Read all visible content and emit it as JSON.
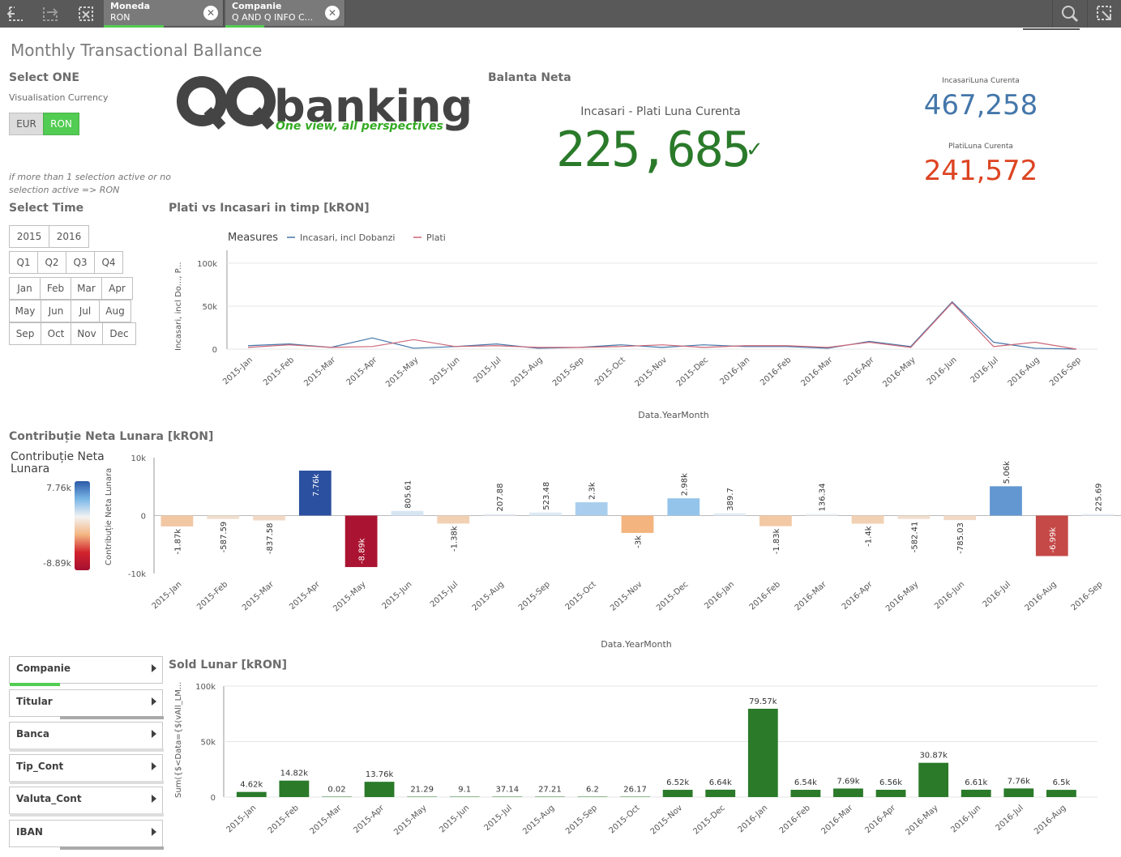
{
  "toolbar": {
    "icons": [
      "step-back-icon",
      "step-forward-icon",
      "clear-selections-icon",
      "search-icon",
      "smart-search-icon"
    ],
    "selections": [
      {
        "title": "Moneda",
        "value": "RON"
      },
      {
        "title": "Companie",
        "value": "Q AND Q INFO C..."
      }
    ]
  },
  "sheet_title": "Monthly Transactional Ballance",
  "currency": {
    "heading": "Select ONE",
    "subtitle": "Visualisation Currency",
    "options": [
      "EUR",
      "RON"
    ],
    "selected": "RON",
    "note": "if more than 1 selection active or no selection active => RON"
  },
  "logo": {
    "text": "QQbanking",
    "tagline": "One view, all perspectives"
  },
  "kpi": {
    "heading": "Balanta Neta",
    "main_label": "Incasari - Plati Luna Curenta",
    "main_value": "225,685",
    "main_color": "#2a7a2a",
    "incasari_label": "IncasariLuna Curenta",
    "incasari_value": "467,258",
    "incasari_color": "#4477aa",
    "plati_label": "PlatiLuna Curenta",
    "plati_value": "241,572",
    "plati_color": "#dd4422"
  },
  "time": {
    "heading": "Select Time",
    "years": [
      "2015",
      "2016"
    ],
    "quarters": [
      "Q1",
      "Q2",
      "Q3",
      "Q4"
    ],
    "months": [
      [
        "Jan",
        "Feb",
        "Mar",
        "Apr"
      ],
      [
        "May",
        "Jun",
        "Jul",
        "Aug"
      ],
      [
        "Sep",
        "Oct",
        "Nov",
        "Dec"
      ]
    ]
  },
  "listboxes": [
    "Companie",
    "Titular",
    "Banca",
    "Tip_Cont",
    "Valuta_Cont",
    "IBAN"
  ],
  "chart_data": [
    {
      "type": "line",
      "title": "Plati vs Incasari in timp [kRON]",
      "legend_title": "Measures",
      "xlabel": "Data.YearMonth",
      "ylabel": "Incasari, incl Do..., P...",
      "x": [
        "2015-Jan",
        "2015-Feb",
        "2015-Mar",
        "2015-Apr",
        "2015-May",
        "2015-Jun",
        "2015-Jul",
        "2015-Aug",
        "2015-Sep",
        "2015-Oct",
        "2015-Nov",
        "2015-Dec",
        "2016-Jan",
        "2016-Feb",
        "2016-Mar",
        "2016-Apr",
        "2016-May",
        "2016-Jun",
        "2016-Jul",
        "2016-Aug",
        "2016-Sep"
      ],
      "yticks": [
        "100k",
        "50k",
        "0"
      ],
      "ylim": [
        0,
        115
      ],
      "series": [
        {
          "name": "Incasari, incl Dobanzi",
          "color": "#4477aa",
          "values": [
            4,
            6,
            2,
            13,
            1,
            3,
            6,
            1,
            2,
            5,
            2,
            5,
            3,
            3,
            1,
            9,
            3,
            55,
            8,
            1,
            0
          ]
        },
        {
          "name": "Plati",
          "color": "#cc6677",
          "values": [
            2,
            5,
            2,
            3,
            11,
            3,
            4,
            2,
            2,
            3,
            5,
            2,
            4,
            4,
            2,
            8,
            2,
            54,
            3,
            8,
            0
          ]
        }
      ],
      "grid": true,
      "legend": "top-left"
    },
    {
      "type": "bar",
      "title": "Contribuție Neta Lunara [kRON]",
      "xlabel": "Data.YearMonth",
      "ylabel": "Contribuție Neta Lunara",
      "legend_title": "Contribuție Neta Lunara",
      "color_range": [
        "7.76k",
        "-8.89k"
      ],
      "categories": [
        "2015-Jan",
        "2015-Feb",
        "2015-Mar",
        "2015-Apr",
        "2015-May",
        "2015-Jun",
        "2015-Jul",
        "2015-Aug",
        "2015-Sep",
        "2015-Oct",
        "2015-Nov",
        "2015-Dec",
        "2016-Jan",
        "2016-Feb",
        "2016-Mar",
        "2016-Apr",
        "2016-May",
        "2016-Jun",
        "2016-Jul",
        "2016-Aug",
        "2016-Sep"
      ],
      "values": [
        -1870,
        -587.59,
        -837.58,
        7760,
        -8890,
        805.61,
        -1380,
        207.88,
        523.48,
        2300,
        -3000,
        2980,
        389.7,
        -1830,
        136.34,
        -1400,
        -582.41,
        -785.03,
        5060,
        -6990,
        225.69
      ],
      "labels": [
        "-1.87k",
        "-587.59",
        "-837.58",
        "7.76k",
        "-8.89k",
        "805.61",
        "-1.38k",
        "207.88",
        "523.48",
        "2.3k",
        "-3k",
        "2.98k",
        "389.7",
        "-1.83k",
        "136.34",
        "-1.4k",
        "-582.41",
        "-785.03",
        "5.06k",
        "-6.99k",
        "225.69"
      ],
      "yticks": [
        "10k",
        "0",
        "-10k"
      ],
      "ylim": [
        -10000,
        10000
      ]
    },
    {
      "type": "bar",
      "title": "Sold Lunar [kRON]",
      "ylabel": "Sum({$<Data={$(vAll_LM...",
      "categories": [
        "2015-Jan",
        "2015-Feb",
        "2015-Mar",
        "2015-Apr",
        "2015-May",
        "2015-Jun",
        "2015-Jul",
        "2015-Aug",
        "2015-Sep",
        "2015-Oct",
        "2015-Nov",
        "2015-Dec",
        "2016-Jan",
        "2016-Feb",
        "2016-Mar",
        "2016-Apr",
        "2016-May",
        "2016-Jun",
        "2016-Jul",
        "2016-Aug"
      ],
      "values": [
        4620,
        14820,
        0.02,
        13760,
        21.29,
        9.1,
        37.14,
        27.21,
        6.2,
        26.17,
        6520,
        6640,
        79570,
        6540,
        7690,
        6560,
        30870,
        6610,
        7760,
        6500
      ],
      "labels": [
        "4.62k",
        "14.82k",
        "0.02",
        "13.76k",
        "21.29",
        "9.1",
        "37.14",
        "27.21",
        "6.2",
        "26.17",
        "6.52k",
        "6.64k",
        "79.57k",
        "6.54k",
        "7.69k",
        "6.56k",
        "30.87k",
        "6.61k",
        "7.76k",
        "6.5k"
      ],
      "yticks": [
        "100k",
        "50k",
        "0"
      ],
      "ylim": [
        0,
        100000
      ],
      "color": "#2a7a2a"
    }
  ]
}
